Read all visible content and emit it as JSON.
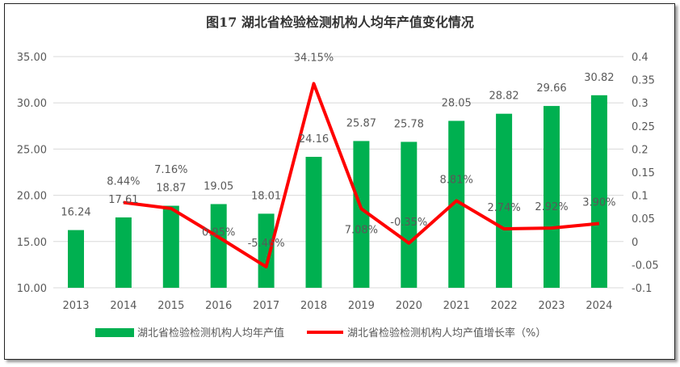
{
  "chart_data": {
    "type": "bar+line",
    "title": "图17  湖北省检验检测机构人均年产值变化情况",
    "categories": [
      "2013",
      "2014",
      "2015",
      "2016",
      "2017",
      "2018",
      "2019",
      "2020",
      "2021",
      "2022",
      "2023",
      "2024"
    ],
    "series": [
      {
        "name": "湖北省检验检测机构人均年产值",
        "type": "bar",
        "axis": "left",
        "color": "#00B050",
        "values": [
          16.24,
          17.61,
          18.87,
          19.05,
          18.01,
          24.16,
          25.87,
          25.78,
          28.05,
          28.82,
          29.66,
          30.82
        ],
        "labels": [
          "16.24",
          "17.61",
          "18.87",
          "19.05",
          "18.01",
          "24.16",
          "25.87",
          "25.78",
          "28.05",
          "28.82",
          "29.66",
          "30.82"
        ]
      },
      {
        "name": "湖北省检验检测机构人均产值增长率（%）",
        "type": "line",
        "axis": "right",
        "color": "#FF0000",
        "values": [
          null,
          0.0844,
          0.0716,
          0.0095,
          -0.0546,
          0.3415,
          0.0708,
          -0.0035,
          0.0881,
          0.0274,
          0.0292,
          0.039
        ],
        "labels": [
          "",
          "8.44%",
          "7.16%",
          "0.95%",
          "-5.46%",
          "34.15%",
          "7.08%",
          "-0.35%",
          "8.81%",
          "2.74%",
          "2.92%",
          "3.90%"
        ]
      }
    ],
    "left_axis": {
      "ylim": [
        10,
        35
      ],
      "ticks": [
        "10.00",
        "15.00",
        "20.00",
        "25.00",
        "30.00",
        "35.00"
      ]
    },
    "right_axis": {
      "ylim": [
        -0.1,
        0.4
      ],
      "ticks": [
        "-0.1",
        "-0.05",
        "0",
        "0.05",
        "0.1",
        "0.15",
        "0.2",
        "0.25",
        "0.3",
        "0.35",
        "0.4"
      ]
    },
    "grid": true,
    "legend": "bottom"
  }
}
